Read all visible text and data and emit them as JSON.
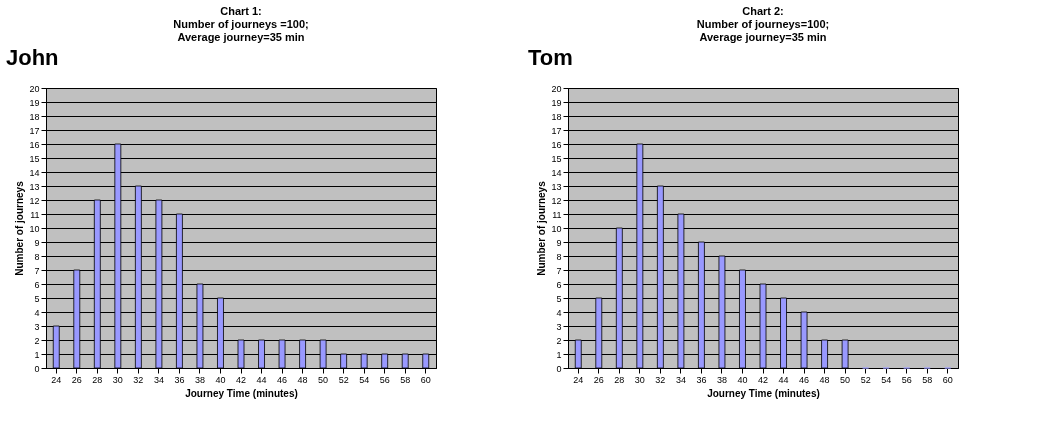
{
  "chart_data": [
    {
      "type": "bar",
      "title": "Chart 1:\nNumber of journeys =100;\nAverage journey=35 min",
      "xlabel": "Journey Time (minutes)",
      "ylabel": "Number of journeys",
      "annotations": [
        "John"
      ],
      "categories": [
        "24",
        "26",
        "28",
        "30",
        "32",
        "34",
        "36",
        "38",
        "40",
        "42",
        "44",
        "46",
        "48",
        "50",
        "52",
        "54",
        "56",
        "58",
        "60"
      ],
      "values": [
        3,
        7,
        12,
        16,
        13,
        12,
        11,
        6,
        5,
        2,
        2,
        2,
        2,
        2,
        1,
        1,
        1,
        1,
        1
      ],
      "color": "#9999ff",
      "ylim": [
        0,
        20
      ],
      "yticks": [
        0,
        1,
        2,
        3,
        4,
        5,
        6,
        7,
        8,
        9,
        10,
        11,
        12,
        13,
        14,
        15,
        16,
        17,
        18,
        19,
        20
      ],
      "grid": "y"
    },
    {
      "type": "bar",
      "title": "Chart 2:\nNumber of journeys=100;\nAverage journey=35 min",
      "xlabel": "Journey Time (minutes)",
      "ylabel": "Number of journeys",
      "annotations": [
        "Tom"
      ],
      "categories": [
        "24",
        "26",
        "28",
        "30",
        "32",
        "34",
        "36",
        "38",
        "40",
        "42",
        "44",
        "46",
        "48",
        "50",
        "52",
        "54",
        "56",
        "58",
        "60"
      ],
      "values": [
        2,
        5,
        10,
        16,
        13,
        11,
        9,
        8,
        7,
        6,
        5,
        4,
        2,
        2,
        0,
        0,
        0,
        0,
        0
      ],
      "color": "#9999ff",
      "ylim": [
        0,
        20
      ],
      "yticks": [
        0,
        1,
        2,
        3,
        4,
        5,
        6,
        7,
        8,
        9,
        10,
        11,
        12,
        13,
        14,
        15,
        16,
        17,
        18,
        19,
        20
      ],
      "grid": "y"
    }
  ]
}
